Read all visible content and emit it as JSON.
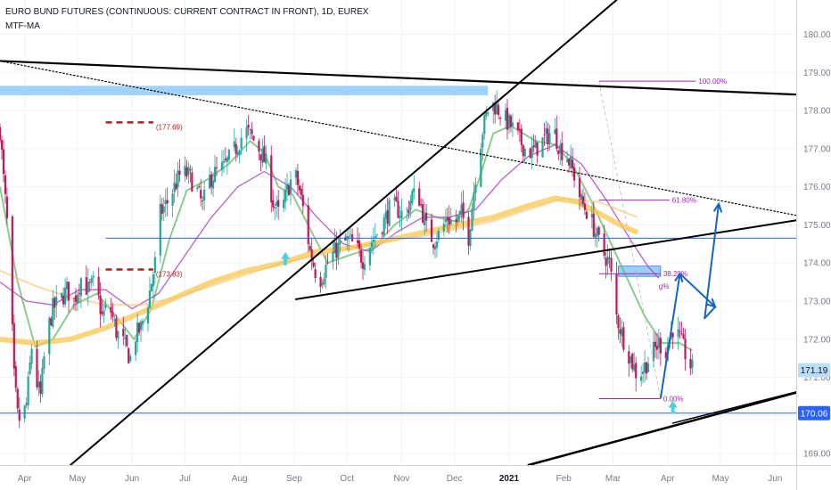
{
  "header": {
    "title": "EURO BUND FUTURES (CONTINUOUS: CURRENT CONTRACT IN FRONT), 1D, EUREX",
    "indicator": "MTF-MA"
  },
  "colors": {
    "up_candle": "#26a69a",
    "down_candle": "#c2185b",
    "ma_fast": "#66bb6a",
    "ma_mid": "#ab47bc",
    "ma_slow": "#f9c74f",
    "ma_slow_faint": "#f5c26b",
    "trendline": "#000000",
    "projection": "#1565c0",
    "horizontal_level": "#2962ff",
    "supply_zone": "#90caf9",
    "marker_dash": "#b71c1c",
    "fib": "#9c27b0",
    "entry_arrow": "#4dd0e1"
  },
  "chart_data": {
    "type": "candlestick",
    "ylim": [
      168.7,
      180.9
    ],
    "y_ticks": [
      169.0,
      170.0,
      171.0,
      172.0,
      173.0,
      174.0,
      175.0,
      176.0,
      177.0,
      178.0,
      179.0,
      180.0
    ],
    "y_tick_labels": [
      "169.00",
      "170.00",
      "171.00",
      "172.00",
      "173.00",
      "174.00",
      "175.00",
      "176.00",
      "177.00",
      "178.00",
      "179.00",
      "180.00"
    ],
    "x_labels": [
      {
        "label": "Apr",
        "day": 14
      },
      {
        "label": "May",
        "day": 44
      },
      {
        "label": "Jun",
        "day": 75
      },
      {
        "label": "Jul",
        "day": 105
      },
      {
        "label": "Aug",
        "day": 136
      },
      {
        "label": "Sep",
        "day": 167
      },
      {
        "label": "Oct",
        "day": 197
      },
      {
        "label": "Nov",
        "day": 228
      },
      {
        "label": "Dec",
        "day": 258
      },
      {
        "label": "2021",
        "day": 289,
        "bold": true
      },
      {
        "label": "Feb",
        "day": 320
      },
      {
        "label": "Mar",
        "day": 348
      },
      {
        "label": "Apr",
        "day": 379
      },
      {
        "label": "May",
        "day": 409
      },
      {
        "label": "Jun",
        "day": 440
      }
    ],
    "price_path": [
      [
        0,
        177.5
      ],
      [
        2,
        176.2
      ],
      [
        5,
        174.5
      ],
      [
        8,
        171.0
      ],
      [
        10,
        170.0
      ],
      [
        12,
        169.8
      ],
      [
        15,
        170.3
      ],
      [
        18,
        171.8
      ],
      [
        20,
        171.0
      ],
      [
        23,
        170.5
      ],
      [
        26,
        172.0
      ],
      [
        30,
        172.8
      ],
      [
        34,
        173.0
      ],
      [
        38,
        173.3
      ],
      [
        42,
        173.0
      ],
      [
        46,
        173.6
      ],
      [
        50,
        173.3
      ],
      [
        54,
        173.5
      ],
      [
        58,
        172.6
      ],
      [
        62,
        172.9
      ],
      [
        66,
        172.2
      ],
      [
        70,
        171.9
      ],
      [
        74,
        171.5
      ],
      [
        77,
        172.1
      ],
      [
        80,
        172.3
      ],
      [
        84,
        173.0
      ],
      [
        88,
        174.0
      ],
      [
        91,
        175.3
      ],
      [
        95,
        175.6
      ],
      [
        99,
        176.0
      ],
      [
        103,
        176.4
      ],
      [
        107,
        176.3
      ],
      [
        111,
        176.0
      ],
      [
        115,
        175.5
      ],
      [
        119,
        176.2
      ],
      [
        123,
        176.4
      ],
      [
        127,
        176.5
      ],
      [
        131,
        176.8
      ],
      [
        135,
        177.1
      ],
      [
        139,
        177.5
      ],
      [
        143,
        177.3
      ],
      [
        147,
        177.0
      ],
      [
        151,
        176.6
      ],
      [
        155,
        175.6
      ],
      [
        159,
        175.2
      ],
      [
        163,
        175.9
      ],
      [
        167,
        176.4
      ],
      [
        170,
        175.9
      ],
      [
        173,
        175.2
      ],
      [
        176,
        174.3
      ],
      [
        179,
        173.8
      ],
      [
        182,
        173.6
      ],
      [
        186,
        174.0
      ],
      [
        190,
        174.3
      ],
      [
        194,
        174.5
      ],
      [
        198,
        174.6
      ],
      [
        202,
        174.4
      ],
      [
        206,
        174.1
      ],
      [
        210,
        174.5
      ],
      [
        214,
        174.8
      ],
      [
        218,
        175.1
      ],
      [
        222,
        175.5
      ],
      [
        226,
        175.4
      ],
      [
        230,
        175.2
      ],
      [
        234,
        175.8
      ],
      [
        238,
        175.7
      ],
      [
        242,
        174.9
      ],
      [
        246,
        174.6
      ],
      [
        250,
        174.8
      ],
      [
        254,
        175.2
      ],
      [
        258,
        175.0
      ],
      [
        262,
        175.3
      ],
      [
        266,
        174.7
      ],
      [
        270,
        176.3
      ],
      [
        274,
        177.5
      ],
      [
        278,
        178.2
      ],
      [
        282,
        178.1
      ],
      [
        286,
        177.8
      ],
      [
        290,
        177.6
      ],
      [
        294,
        177.3
      ],
      [
        298,
        177.0
      ],
      [
        302,
        176.9
      ],
      [
        306,
        177.1
      ],
      [
        310,
        177.3
      ],
      [
        314,
        177.5
      ],
      [
        318,
        177.0
      ],
      [
        322,
        176.8
      ],
      [
        326,
        176.3
      ],
      [
        330,
        175.6
      ],
      [
        334,
        175.3
      ],
      [
        338,
        174.8
      ],
      [
        342,
        174.3
      ],
      [
        346,
        174.0
      ],
      [
        350,
        172.6
      ],
      [
        354,
        172.0
      ],
      [
        358,
        171.5
      ],
      [
        362,
        171.0
      ],
      [
        366,
        171.3
      ],
      [
        370,
        171.6
      ],
      [
        374,
        171.9
      ],
      [
        378,
        171.7
      ],
      [
        382,
        172.3
      ],
      [
        386,
        172.0
      ],
      [
        390,
        171.5
      ],
      [
        393,
        171.2
      ]
    ],
    "moving_averages": [
      {
        "id": "ma-fast",
        "path": [
          [
            0,
            176.0
          ],
          [
            10,
            173.5
          ],
          [
            20,
            171.8
          ],
          [
            30,
            172.0
          ],
          [
            42,
            172.9
          ],
          [
            55,
            173.2
          ],
          [
            66,
            172.6
          ],
          [
            76,
            172.0
          ],
          [
            86,
            172.8
          ],
          [
            96,
            174.6
          ],
          [
            106,
            175.9
          ],
          [
            118,
            176.2
          ],
          [
            130,
            176.6
          ],
          [
            142,
            177.2
          ],
          [
            150,
            176.9
          ],
          [
            158,
            176.0
          ],
          [
            166,
            175.8
          ],
          [
            176,
            174.9
          ],
          [
            186,
            174.0
          ],
          [
            198,
            174.2
          ],
          [
            212,
            174.4
          ],
          [
            224,
            175.0
          ],
          [
            236,
            175.4
          ],
          [
            248,
            175.2
          ],
          [
            258,
            175.1
          ],
          [
            266,
            175.4
          ],
          [
            272,
            176.2
          ],
          [
            280,
            177.4
          ],
          [
            290,
            177.6
          ],
          [
            304,
            177.2
          ],
          [
            316,
            177.1
          ],
          [
            326,
            176.5
          ],
          [
            336,
            175.6
          ],
          [
            346,
            174.6
          ],
          [
            356,
            173.6
          ],
          [
            366,
            172.6
          ],
          [
            376,
            171.9
          ],
          [
            386,
            171.9
          ],
          [
            393,
            171.7
          ]
        ]
      },
      {
        "id": "ma-mid",
        "path": [
          [
            0,
            173.5
          ],
          [
            15,
            173.0
          ],
          [
            30,
            172.9
          ],
          [
            45,
            173.3
          ],
          [
            60,
            173.3
          ],
          [
            75,
            172.8
          ],
          [
            90,
            173.2
          ],
          [
            105,
            174.2
          ],
          [
            120,
            175.2
          ],
          [
            135,
            176.0
          ],
          [
            150,
            176.4
          ],
          [
            165,
            176.0
          ],
          [
            180,
            175.2
          ],
          [
            195,
            174.5
          ],
          [
            210,
            174.3
          ],
          [
            225,
            174.8
          ],
          [
            240,
            175.2
          ],
          [
            255,
            175.2
          ],
          [
            270,
            175.4
          ],
          [
            285,
            176.2
          ],
          [
            300,
            176.8
          ],
          [
            315,
            177.1
          ],
          [
            330,
            176.6
          ],
          [
            345,
            175.6
          ],
          [
            358,
            174.6
          ],
          [
            368,
            173.9
          ],
          [
            374,
            173.6
          ]
        ]
      },
      {
        "id": "ma-slow",
        "path": [
          [
            0,
            172.0
          ],
          [
            20,
            171.9
          ],
          [
            40,
            172.0
          ],
          [
            60,
            172.3
          ],
          [
            80,
            172.7
          ],
          [
            100,
            173.1
          ],
          [
            120,
            173.5
          ],
          [
            140,
            173.8
          ],
          [
            160,
            174.0
          ],
          [
            180,
            174.3
          ],
          [
            200,
            174.4
          ],
          [
            220,
            174.6
          ],
          [
            240,
            174.8
          ],
          [
            260,
            175.0
          ],
          [
            280,
            175.2
          ],
          [
            300,
            175.5
          ],
          [
            315,
            175.7
          ],
          [
            328,
            175.6
          ],
          [
            340,
            175.3
          ],
          [
            352,
            175.0
          ],
          [
            362,
            174.8
          ]
        ]
      },
      {
        "id": "ma-slow-faint",
        "path": [
          [
            0,
            173.8
          ],
          [
            20,
            173.4
          ],
          [
            40,
            173.1
          ],
          [
            60,
            172.9
          ],
          [
            80,
            172.9
          ],
          [
            100,
            173.1
          ],
          [
            120,
            173.4
          ],
          [
            140,
            173.7
          ],
          [
            160,
            174.0
          ],
          [
            180,
            174.2
          ],
          [
            200,
            174.4
          ],
          [
            220,
            174.6
          ],
          [
            240,
            174.7
          ],
          [
            260,
            174.9
          ],
          [
            280,
            175.1
          ],
          [
            300,
            175.4
          ],
          [
            320,
            175.7
          ],
          [
            340,
            175.6
          ],
          [
            362,
            175.2
          ]
        ]
      }
    ],
    "horizontal_levels": [
      {
        "id": "level-174-65",
        "price": 174.65,
        "from_day": 60
      },
      {
        "id": "level-170-06",
        "price": 170.06,
        "from_day": 0
      }
    ],
    "supply_zone": {
      "from_day": 0,
      "to_day": 277,
      "top": 178.65,
      "bottom": 178.4
    },
    "fib_zone": {
      "from_day": 351,
      "to_day": 375,
      "top": 173.92,
      "bottom": 173.65
    },
    "markers": [
      {
        "id": "marker-177-69",
        "label": "(177.69)",
        "price": 177.69,
        "from_day": 60,
        "to_day": 87
      },
      {
        "id": "marker-173-83",
        "label": "(173.83)",
        "price": 173.83,
        "from_day": 60,
        "to_day": 87
      }
    ],
    "fib_levels": [
      {
        "id": "fib-100",
        "label": "100.00%",
        "price": 178.77,
        "from_day": 340,
        "to_day": 395
      },
      {
        "id": "fib-618",
        "label": "61.80%",
        "price": 175.65,
        "from_day": 340,
        "to_day": 380
      },
      {
        "id": "fib-382",
        "label": "38.20%",
        "price": 173.72,
        "from_day": 340,
        "to_day": 375
      },
      {
        "id": "fib-0",
        "label": "0.00%",
        "price": 170.44,
        "from_day": 340,
        "to_day": 375
      }
    ],
    "fib_small_label": {
      "text": "g%",
      "day": 380,
      "price": 173.4
    },
    "trendlines": [
      {
        "id": "trendline-long-rising",
        "from": [
          40,
          168.7
        ],
        "to": [
          350,
          180.9
        ],
        "width": 2
      },
      {
        "id": "trendline-descending-top",
        "from": [
          0,
          179.3
        ],
        "to": [
          452,
          178.42
        ],
        "width": 2.2
      },
      {
        "id": "trendline-dotted-descending",
        "from": [
          0,
          179.3
        ],
        "to": [
          452,
          175.25
        ],
        "width": 1.2,
        "dashed": true
      },
      {
        "id": "trendline-triangle-lower",
        "from": [
          168,
          173.05
        ],
        "to": [
          452,
          175.12
        ],
        "width": 2
      },
      {
        "id": "trendline-bottom-rising",
        "from": [
          300,
          168.7
        ],
        "to": [
          452,
          170.6
        ],
        "width": 2.5
      },
      {
        "id": "trendline-bottom-rising-2",
        "from": [
          382,
          169.8
        ],
        "to": [
          452,
          170.62
        ],
        "width": 1.5
      }
    ],
    "projection_path": [
      [
        375,
        170.45
      ],
      [
        386,
        173.72
      ],
      [
        406,
        172.85
      ],
      [
        400,
        172.55
      ],
      [
        408,
        175.55
      ]
    ],
    "entry_arrows": [
      {
        "id": "entry-arrow-sep",
        "day": 162,
        "price": 174.15
      },
      {
        "id": "entry-arrow-apr",
        "day": 382,
        "price": 170.25
      }
    ],
    "price_badges": [
      {
        "id": "price-badge-current",
        "label": "171.19",
        "price": 171.19,
        "fill": "#bbdefb"
      },
      {
        "id": "price-badge-level",
        "label": "170.06",
        "price": 170.06,
        "fill": "#2962ff"
      }
    ]
  }
}
